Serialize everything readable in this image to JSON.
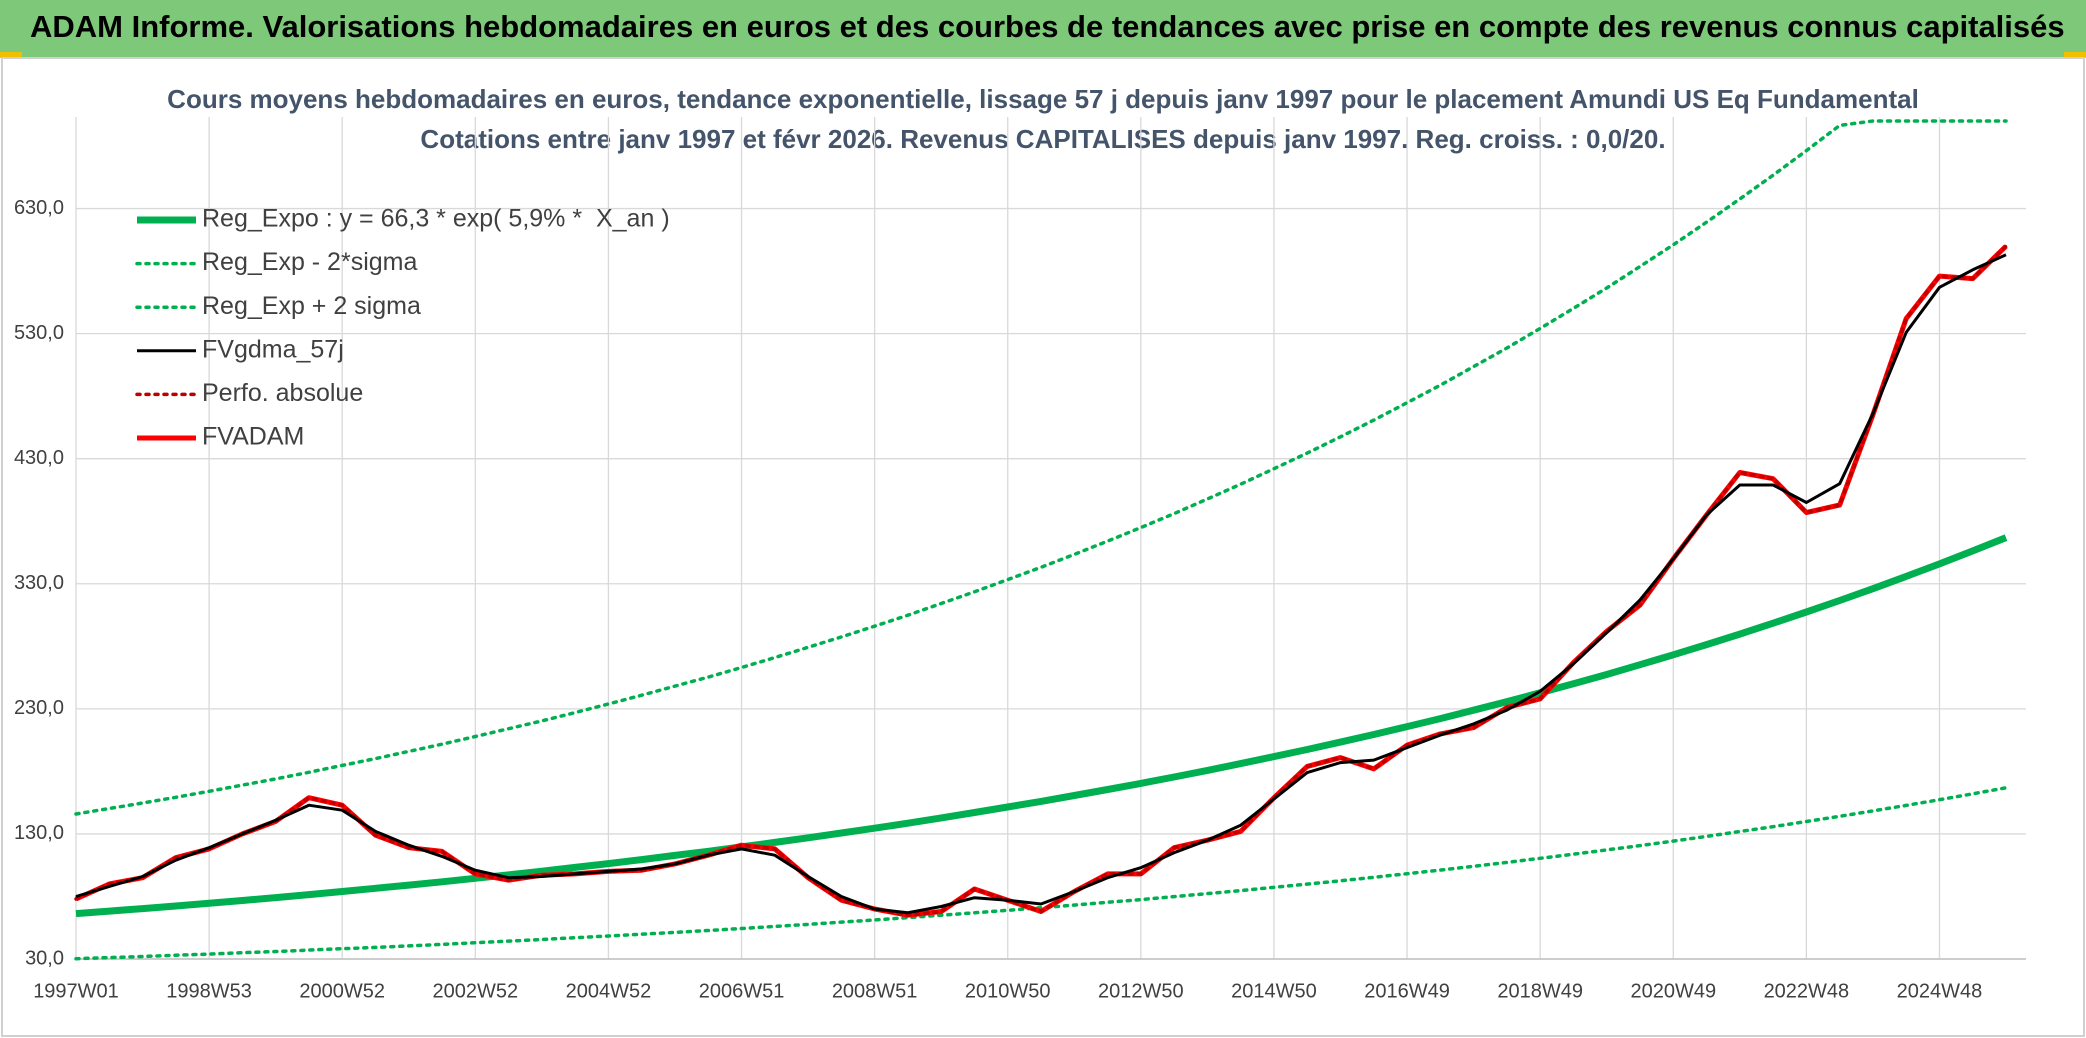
{
  "header": {
    "title": "ADAM Informe. Valorisations hebdomadaires en euros et des courbes de tendances avec prise en compte des revenus connus capitalisés"
  },
  "chart_data": {
    "type": "line",
    "title": "Cours moyens hebdomadaires en euros, tendance exponentielle, lissage 57 j depuis janv 1997 pour le placement Amundi US Eq Fundamental",
    "subtitle": "Cotations entre janv 1997 et févr 2026. Revenus CAPITALISES depuis janv 1997. Reg. croiss. : 0,0/20.",
    "categories": [
      "1997W01",
      null,
      null,
      null,
      "1998W53",
      null,
      null,
      null,
      "2000W52",
      null,
      null,
      null,
      "2002W52",
      null,
      null,
      null,
      "2004W52",
      null,
      null,
      null,
      "2006W51",
      null,
      null,
      null,
      "2008W51",
      null,
      null,
      null,
      "2010W50",
      null,
      null,
      null,
      "2012W50",
      null,
      null,
      null,
      "2014W50",
      null,
      null,
      null,
      "2016W49",
      null,
      null,
      null,
      "2018W49",
      null,
      null,
      null,
      "2020W49",
      null,
      null,
      null,
      "2022W48",
      null,
      null,
      null,
      "2024W48",
      null,
      null
    ],
    "ylim": [
      30,
      700
    ],
    "yticks": [
      {
        "value": 30,
        "label": "30,0"
      },
      {
        "value": 130,
        "label": "130,0"
      },
      {
        "value": 230,
        "label": "230,0"
      },
      {
        "value": 330,
        "label": "330,0"
      },
      {
        "value": 430,
        "label": "430,0"
      },
      {
        "value": 530,
        "label": "530,0"
      },
      {
        "value": 630,
        "label": "630,0"
      }
    ],
    "grid": true,
    "legend": "top-left",
    "series": [
      {
        "name": "Reg_Expo : y = 66,3 * exp( 5,9% *  X_an )",
        "color": "#00b050",
        "style": "bold",
        "values": [
          66.3,
          68.3,
          70.3,
          72.4,
          74.6,
          76.8,
          79.1,
          81.5,
          84.0,
          86.5,
          89.1,
          91.7,
          94.5,
          97.3,
          100.2,
          103.2,
          106.3,
          109.5,
          112.8,
          116.1,
          119.6,
          123.2,
          126.9,
          130.7,
          134.6,
          138.6,
          142.8,
          147.1,
          151.5,
          156.0,
          160.7,
          165.5,
          170.4,
          175.5,
          180.8,
          186.2,
          191.8,
          197.5,
          203.4,
          209.5,
          215.8,
          222.2,
          228.9,
          235.7,
          242.8,
          250.1,
          257.5,
          265.3,
          273.2,
          281.4,
          289.8,
          298.5,
          307.4,
          316.6,
          326.1,
          335.9,
          345.9,
          356.3,
          366.9
        ]
      },
      {
        "name": "Reg_Exp - 2*sigma",
        "color": "#00b050",
        "style": "dotted",
        "values": [
          30.2,
          31.1,
          32.0,
          33.0,
          33.9,
          35.0,
          36.0,
          37.1,
          38.2,
          39.3,
          40.5,
          41.7,
          43.0,
          44.3,
          45.6,
          47.0,
          48.4,
          49.8,
          51.3,
          52.8,
          54.4,
          56.1,
          57.7,
          59.5,
          61.2,
          63.1,
          65.0,
          66.9,
          68.9,
          71.0,
          73.1,
          75.3,
          77.5,
          79.9,
          82.3,
          84.7,
          87.3,
          89.9,
          92.5,
          95.3,
          98.2,
          101.1,
          104.1,
          107.2,
          110.5,
          113.8,
          117.2,
          120.7,
          124.3,
          128.0,
          131.9,
          135.8,
          139.9,
          144.1,
          148.4,
          152.8,
          157.4,
          162.1,
          166.9
        ]
      },
      {
        "name": "Reg_Exp + 2 sigma",
        "color": "#00b050",
        "style": "dotted",
        "values": [
          145.9,
          150.3,
          154.7,
          159.3,
          164.1,
          169.0,
          174.0,
          179.3,
          184.8,
          190.2,
          196.0,
          201.7,
          207.9,
          214.1,
          220.4,
          227.0,
          233.9,
          240.9,
          248.2,
          255.4,
          263.1,
          271.0,
          279.2,
          287.5,
          296.1,
          304.9,
          314.2,
          323.6,
          333.3,
          343.2,
          353.5,
          364.1,
          374.9,
          386.1,
          397.8,
          409.6,
          422.0,
          434.5,
          447.5,
          460.9,
          474.8,
          488.8,
          503.6,
          518.5,
          534.2,
          550.2,
          566.5,
          583.7,
          601.0,
          619.1,
          637.6,
          656.7,
          676.3,
          696.5,
          700,
          700,
          700,
          700,
          700
        ]
      },
      {
        "name": "FVgdma_57j",
        "color": "#000000",
        "style": "solid",
        "values": [
          80,
          88,
          96,
          109,
          119,
          130,
          141,
          153,
          149,
          132,
          121,
          112,
          101,
          95,
          96,
          98,
          100,
          102,
          106,
          113,
          118,
          113,
          96,
          80,
          70,
          67,
          72,
          79,
          77,
          74,
          84,
          95,
          103,
          115,
          125,
          137,
          158,
          179,
          187,
          189,
          199,
          209,
          218,
          229,
          244,
          266,
          291,
          317,
          350,
          385,
          409,
          409,
          395,
          410,
          466,
          531,
          567,
          581,
          593
        ]
      },
      {
        "name": "Perfo. absolue",
        "color": "#c00000",
        "style": "dotted",
        "values": [
          78,
          90,
          95,
          111,
          118,
          130,
          140,
          159,
          153,
          129,
          119,
          116,
          98,
          93,
          97,
          98,
          100,
          101,
          106,
          113,
          121,
          118,
          95,
          77,
          70,
          65,
          68,
          86,
          77,
          68,
          84,
          98,
          98,
          119,
          125,
          132,
          159,
          184,
          191,
          182,
          201,
          210,
          215,
          231,
          238,
          267,
          292,
          313,
          350,
          385,
          419,
          414,
          387,
          393,
          465,
          542,
          576,
          574,
          600
        ]
      },
      {
        "name": "FVADAM",
        "color": "#ff0000",
        "style": "bold",
        "values": [
          78,
          90,
          95,
          111,
          118,
          130,
          140,
          159,
          153,
          129,
          119,
          116,
          98,
          93,
          97,
          98,
          100,
          101,
          106,
          113,
          121,
          118,
          95,
          77,
          70,
          65,
          68,
          86,
          77,
          68,
          84,
          98,
          98,
          119,
          125,
          132,
          159,
          184,
          191,
          182,
          201,
          210,
          215,
          231,
          238,
          267,
          292,
          313,
          350,
          385,
          419,
          414,
          387,
          393,
          465,
          542,
          576,
          574,
          600
        ]
      }
    ]
  }
}
